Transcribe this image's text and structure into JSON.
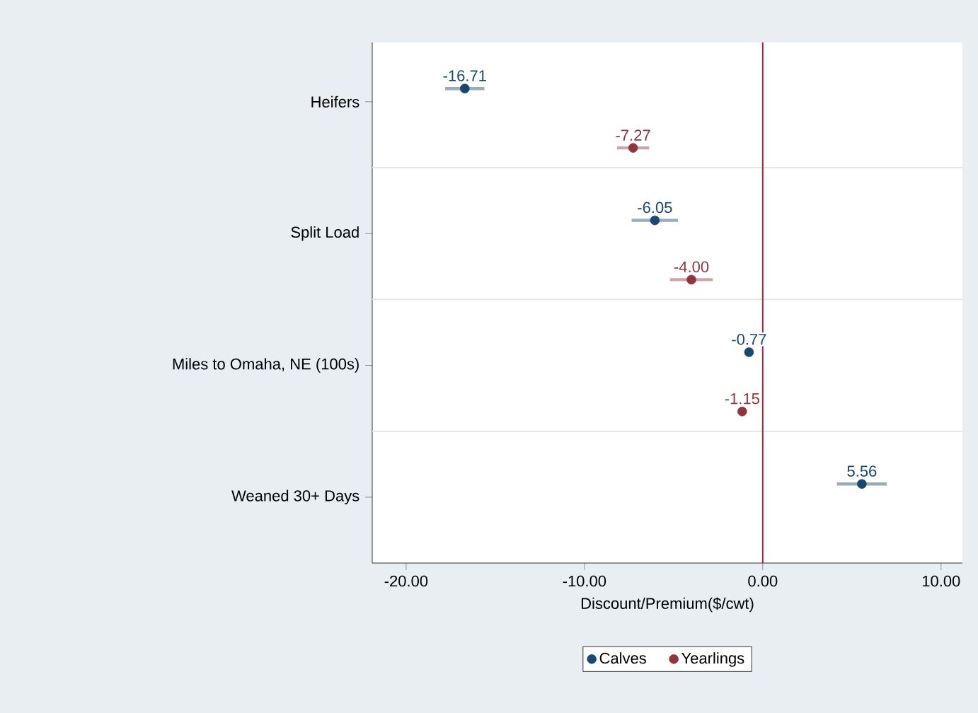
{
  "chart_data": {
    "type": "scatter",
    "orientation": "horizontal",
    "xlabel": "Discount/Premium($/cwt)",
    "categories": [
      "Heifers",
      "Split Load",
      "Miles to Omaha, NE (100s)",
      "Weaned 30+ Days"
    ],
    "series": [
      {
        "name": "Calves",
        "color": "#1a476f",
        "values": [
          -16.71,
          -6.05,
          -0.77,
          5.56
        ],
        "value_labels": [
          "-16.71",
          "-6.05",
          "-0.77",
          "5.56"
        ],
        "errors": [
          1.1,
          1.3,
          null,
          1.4
        ]
      },
      {
        "name": "Yearlings",
        "color": "#90353b",
        "values": [
          -7.27,
          -4.0,
          -1.15,
          null
        ],
        "value_labels": [
          "-7.27",
          "-4.00",
          "-1.15",
          null
        ],
        "errors": [
          0.9,
          1.2,
          null,
          null
        ]
      }
    ],
    "xlim": [
      -21.9,
      11.2
    ],
    "xticks": [
      {
        "value": -20,
        "label": "-20.00"
      },
      {
        "value": -10,
        "label": "-10.00"
      },
      {
        "value": 0,
        "label": "0.00"
      },
      {
        "value": 10,
        "label": "10.00"
      }
    ],
    "ref_lines": [
      {
        "axis": "x",
        "value": 0,
        "color": "#b0203f"
      }
    ],
    "grid": "y",
    "marker": "circle",
    "legend": "bottom"
  }
}
